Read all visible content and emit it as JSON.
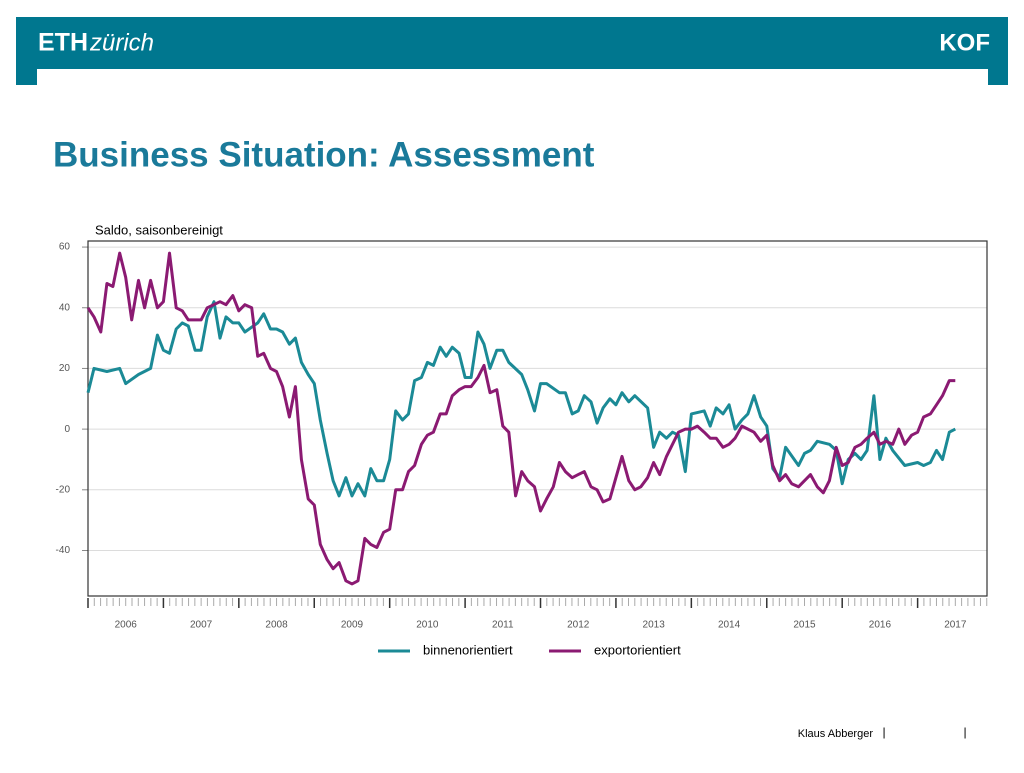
{
  "header": {
    "logo_bold": "ETH",
    "logo_italic": "zürich",
    "right_logo": "KOF"
  },
  "footer": {
    "author": "Klaus Abberger",
    "separator": "|"
  },
  "chart_data": {
    "type": "line",
    "title": "Business Situation: Assessment",
    "y_label": "Saldo, saisonbereinigt",
    "ylim": [
      -55,
      62
    ],
    "yticks": [
      -40,
      -20,
      0,
      20,
      40,
      60
    ],
    "xlim": [
      2006,
      2017.92
    ],
    "xticks": [
      {
        "value": 2006.5,
        "label": "2006"
      },
      {
        "value": 2007.5,
        "label": "2007"
      },
      {
        "value": 2008.5,
        "label": "2008"
      },
      {
        "value": 2009.5,
        "label": "2009"
      },
      {
        "value": 2010.5,
        "label": "2010"
      },
      {
        "value": 2011.5,
        "label": "2011"
      },
      {
        "value": 2012.5,
        "label": "2012"
      },
      {
        "value": 2013.5,
        "label": "2013"
      },
      {
        "value": 2014.5,
        "label": "2014"
      },
      {
        "value": 2015.5,
        "label": "2015"
      },
      {
        "value": 2016.5,
        "label": "2016"
      },
      {
        "value": 2017.5,
        "label": "2017"
      }
    ],
    "grid": true,
    "legend": "bottom",
    "series": [
      {
        "name": "binnenorientiert",
        "color": "#1b8a96",
        "x": [
          2006.0,
          2006.08,
          2006.25,
          2006.42,
          2006.5,
          2006.67,
          2006.83,
          2006.92,
          2007.0,
          2007.08,
          2007.17,
          2007.25,
          2007.33,
          2007.42,
          2007.5,
          2007.58,
          2007.67,
          2007.75,
          2007.83,
          2007.92,
          2008.0,
          2008.08,
          2008.25,
          2008.33,
          2008.42,
          2008.5,
          2008.58,
          2008.67,
          2008.75,
          2008.83,
          2008.92,
          2009.0,
          2009.08,
          2009.17,
          2009.25,
          2009.33,
          2009.42,
          2009.5,
          2009.58,
          2009.67,
          2009.75,
          2009.83,
          2009.92,
          2010.0,
          2010.08,
          2010.17,
          2010.25,
          2010.33,
          2010.42,
          2010.5,
          2010.58,
          2010.67,
          2010.75,
          2010.83,
          2010.92,
          2011.0,
          2011.08,
          2011.17,
          2011.25,
          2011.33,
          2011.42,
          2011.5,
          2011.58,
          2011.75,
          2011.83,
          2011.92,
          2012.0,
          2012.08,
          2012.25,
          2012.33,
          2012.42,
          2012.5,
          2012.58,
          2012.67,
          2012.75,
          2012.83,
          2012.92,
          2013.0,
          2013.08,
          2013.17,
          2013.25,
          2013.42,
          2013.5,
          2013.58,
          2013.67,
          2013.75,
          2013.83,
          2013.92,
          2014.0,
          2014.17,
          2014.25,
          2014.33,
          2014.42,
          2014.5,
          2014.58,
          2014.67,
          2014.75,
          2014.83,
          2014.92,
          2015.0,
          2015.08,
          2015.17,
          2015.25,
          2015.42,
          2015.5,
          2015.58,
          2015.67,
          2015.83,
          2015.92,
          2016.0,
          2016.08,
          2016.17,
          2016.25,
          2016.33,
          2016.42,
          2016.5,
          2016.58,
          2016.67,
          2016.83,
          2017.0,
          2017.08,
          2017.17,
          2017.25,
          2017.33,
          2017.42,
          2017.5
        ],
        "values": [
          12,
          20,
          19,
          20,
          15,
          18,
          20,
          31,
          26,
          25,
          33,
          35,
          34,
          26,
          26,
          37,
          42,
          30,
          37,
          35,
          35,
          32,
          35,
          38,
          33,
          33,
          32,
          28,
          30,
          22,
          18,
          15,
          3,
          -8,
          -17,
          -22,
          -16,
          -22,
          -18,
          -22,
          -13,
          -17,
          -17,
          -10,
          6,
          3,
          5,
          16,
          17,
          22,
          21,
          27,
          24,
          27,
          25,
          17,
          17,
          32,
          28,
          20,
          26,
          26,
          22,
          18,
          13,
          6,
          15,
          15,
          12,
          12,
          5,
          6,
          11,
          9,
          2,
          7,
          10,
          8,
          12,
          9,
          11,
          7,
          -6,
          -1,
          -3,
          -1,
          -2,
          -14,
          5,
          6,
          1,
          7,
          5,
          8,
          0,
          3,
          5,
          11,
          4,
          1,
          -13,
          -16,
          -6,
          -12,
          -8,
          -7,
          -4,
          -5,
          -7,
          -18,
          -10,
          -8,
          -10,
          -7,
          11,
          -10,
          -3,
          -7,
          -12,
          -11,
          -12,
          -11,
          -7,
          -10,
          -1,
          0
        ]
      },
      {
        "name": "exportorientiert",
        "color": "#8b1a72",
        "x": [
          2006.0,
          2006.08,
          2006.17,
          2006.25,
          2006.33,
          2006.42,
          2006.5,
          2006.58,
          2006.67,
          2006.75,
          2006.83,
          2006.92,
          2007.0,
          2007.08,
          2007.17,
          2007.25,
          2007.33,
          2007.5,
          2007.58,
          2007.75,
          2007.83,
          2007.92,
          2008.0,
          2008.08,
          2008.17,
          2008.25,
          2008.33,
          2008.42,
          2008.5,
          2008.58,
          2008.67,
          2008.75,
          2008.83,
          2008.92,
          2009.0,
          2009.08,
          2009.17,
          2009.25,
          2009.33,
          2009.42,
          2009.5,
          2009.58,
          2009.67,
          2009.75,
          2009.83,
          2009.92,
          2010.0,
          2010.08,
          2010.17,
          2010.25,
          2010.33,
          2010.42,
          2010.5,
          2010.58,
          2010.67,
          2010.75,
          2010.83,
          2010.92,
          2011.0,
          2011.08,
          2011.17,
          2011.25,
          2011.33,
          2011.42,
          2011.5,
          2011.58,
          2011.67,
          2011.75,
          2011.83,
          2011.92,
          2012.0,
          2012.08,
          2012.17,
          2012.25,
          2012.33,
          2012.42,
          2012.5,
          2012.58,
          2012.67,
          2012.75,
          2012.83,
          2012.92,
          2013.0,
          2013.08,
          2013.17,
          2013.25,
          2013.33,
          2013.42,
          2013.5,
          2013.58,
          2013.67,
          2013.75,
          2013.83,
          2013.92,
          2014.0,
          2014.08,
          2014.17,
          2014.25,
          2014.33,
          2014.42,
          2014.5,
          2014.58,
          2014.67,
          2014.75,
          2014.83,
          2014.92,
          2015.0,
          2015.08,
          2015.17,
          2015.25,
          2015.33,
          2015.42,
          2015.5,
          2015.58,
          2015.67,
          2015.75,
          2015.83,
          2015.92,
          2016.0,
          2016.08,
          2016.17,
          2016.25,
          2016.33,
          2016.42,
          2016.5,
          2016.58,
          2016.67,
          2016.75,
          2016.83,
          2016.92,
          2017.0,
          2017.08,
          2017.17,
          2017.25,
          2017.33,
          2017.42,
          2017.5
        ],
        "values": [
          40,
          37,
          32,
          48,
          47,
          58,
          50,
          36,
          49,
          40,
          49,
          40,
          42,
          58,
          40,
          39,
          36,
          36,
          40,
          42,
          41,
          44,
          39,
          41,
          40,
          24,
          25,
          20,
          19,
          14,
          4,
          14,
          -10,
          -23,
          -25,
          -38,
          -43,
          -46,
          -44,
          -50,
          -51,
          -50,
          -36,
          -38,
          -39,
          -34,
          -33,
          -20,
          -20,
          -14,
          -12,
          -5,
          -2,
          -1,
          5,
          5,
          11,
          13,
          14,
          14,
          17,
          21,
          12,
          13,
          1,
          -1,
          -22,
          -14,
          -17,
          -19,
          -27,
          -23,
          -19,
          -11,
          -14,
          -16,
          -15,
          -14,
          -19,
          -20,
          -24,
          -23,
          -16,
          -9,
          -17,
          -20,
          -19,
          -16,
          -11,
          -15,
          -9,
          -5,
          -1,
          0,
          0,
          1,
          -1,
          -3,
          -3,
          -6,
          -5,
          -3,
          1,
          0,
          -1,
          -4,
          -2,
          -12,
          -17,
          -15,
          -18,
          -19,
          -17,
          -15,
          -19,
          -21,
          -17,
          -6,
          -12,
          -11,
          -6,
          -5,
          -3,
          -1,
          -5,
          -4,
          -5,
          0,
          -5,
          -2,
          -1,
          4,
          5,
          8,
          11,
          16,
          16
        ]
      }
    ]
  }
}
